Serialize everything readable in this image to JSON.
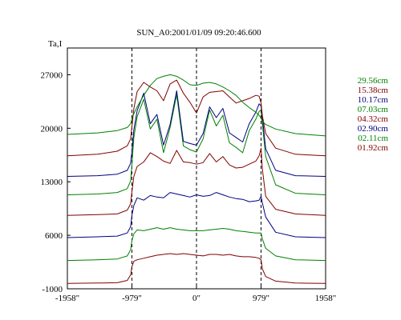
{
  "chart_data": {
    "type": "line",
    "title": "SUN_A0:2001/01/09 09:20:46.600",
    "ylabel": "Ta,I",
    "xlabel": "",
    "xlim": [
      -1958,
      1958
    ],
    "ylim": [
      -1000,
      30500
    ],
    "x_ticks": [
      {
        "value": -1958,
        "label": "-1958\""
      },
      {
        "value": -979,
        "label": "-979\""
      },
      {
        "value": 0,
        "label": "0\""
      },
      {
        "value": 979,
        "label": "979\""
      },
      {
        "value": 1958,
        "label": "1958\""
      }
    ],
    "y_ticks": [
      {
        "value": -1000,
        "label": "-1000"
      },
      {
        "value": 6000,
        "label": "6000"
      },
      {
        "value": 13000,
        "label": "13000"
      },
      {
        "value": 20000,
        "label": "20000"
      },
      {
        "value": 27000,
        "label": "27000"
      }
    ],
    "vlines": [
      -979,
      0,
      979
    ],
    "x": [
      -1958,
      -1500,
      -1200,
      -1050,
      -1000,
      -979,
      -950,
      -900,
      -800,
      -700,
      -600,
      -500,
      -400,
      -300,
      -200,
      -100,
      0,
      100,
      200,
      300,
      400,
      500,
      600,
      700,
      800,
      900,
      950,
      979,
      1000,
      1050,
      1200,
      1500,
      1958
    ],
    "series": [
      {
        "name": "29.56cm",
        "color": "#008000",
        "values": [
          19200,
          19400,
          19700,
          20100,
          20600,
          21200,
          21900,
          22800,
          24300,
          25600,
          26500,
          26800,
          27000,
          26800,
          26300,
          25700,
          25600,
          25900,
          26000,
          25800,
          25400,
          24900,
          24300,
          23400,
          22700,
          22100,
          21700,
          21300,
          20900,
          20500,
          19900,
          19300,
          19000
        ]
      },
      {
        "name": "15.38cm",
        "color": "#800000",
        "values": [
          16400,
          16600,
          17000,
          17700,
          18600,
          20200,
          22600,
          24800,
          26000,
          25400,
          24900,
          23600,
          25800,
          26300,
          24600,
          23400,
          22000,
          24100,
          24700,
          24800,
          24900,
          24100,
          23300,
          23600,
          23900,
          24300,
          24200,
          23300,
          21600,
          19300,
          17400,
          16600,
          16400
        ]
      },
      {
        "name": "10.17cm",
        "color": "#000080",
        "values": [
          13700,
          13800,
          14000,
          14500,
          15400,
          17000,
          19800,
          22300,
          24600,
          20600,
          21800,
          17800,
          20500,
          24900,
          18300,
          18000,
          17800,
          19300,
          22800,
          21400,
          22600,
          19400,
          18800,
          18200,
          20600,
          22100,
          23200,
          22900,
          21300,
          17300,
          14500,
          13800,
          13700
        ]
      },
      {
        "name": "07.03cm",
        "color": "#008000",
        "values": [
          11300,
          11400,
          11600,
          12100,
          13100,
          15200,
          18800,
          21500,
          23800,
          19900,
          21200,
          16800,
          20100,
          24400,
          17700,
          17200,
          16900,
          18600,
          22400,
          20300,
          21700,
          18100,
          17500,
          16800,
          19700,
          21200,
          22200,
          22400,
          20500,
          16300,
          12600,
          11500,
          11300
        ]
      },
      {
        "name": "04.32cm",
        "color": "#800000",
        "values": [
          8600,
          8700,
          8800,
          9300,
          10100,
          11700,
          13700,
          15000,
          15600,
          16800,
          16300,
          15700,
          15400,
          17100,
          15600,
          15500,
          15300,
          15500,
          16700,
          15600,
          16300,
          15200,
          14800,
          14900,
          15300,
          15700,
          16400,
          17400,
          14600,
          11100,
          9400,
          8800,
          8600
        ]
      },
      {
        "name": "02.90cm",
        "color": "#000080",
        "values": [
          5700,
          5800,
          5900,
          6300,
          7100,
          8600,
          9900,
          10900,
          10600,
          11200,
          11000,
          10900,
          11600,
          11400,
          11200,
          11000,
          11300,
          11100,
          11200,
          11600,
          11300,
          11000,
          10800,
          10700,
          10400,
          10500,
          10600,
          11100,
          10200,
          8400,
          6400,
          5800,
          5700
        ]
      },
      {
        "name": "02.11cm",
        "color": "#008000",
        "values": [
          2700,
          2800,
          2900,
          3300,
          4100,
          5300,
          6200,
          6700,
          6600,
          6800,
          7000,
          6800,
          7000,
          6800,
          6700,
          6600,
          6600,
          6600,
          6700,
          6800,
          6900,
          6800,
          6600,
          6500,
          6400,
          6300,
          6300,
          6300,
          5500,
          4300,
          3300,
          2800,
          2700
        ]
      },
      {
        "name": "01.92cm",
        "color": "#800000",
        "values": [
          -300,
          -250,
          -200,
          100,
          800,
          1900,
          2600,
          2800,
          3000,
          3200,
          3400,
          3500,
          3600,
          3500,
          3600,
          3500,
          3400,
          3300,
          3500,
          3500,
          3400,
          3500,
          3300,
          3200,
          3200,
          3100,
          3000,
          2800,
          1600,
          600,
          0,
          -250,
          -300
        ]
      }
    ],
    "legend_position": "right",
    "legend_order": [
      0,
      1,
      2,
      3,
      4,
      5,
      6,
      7
    ],
    "grid": false
  }
}
